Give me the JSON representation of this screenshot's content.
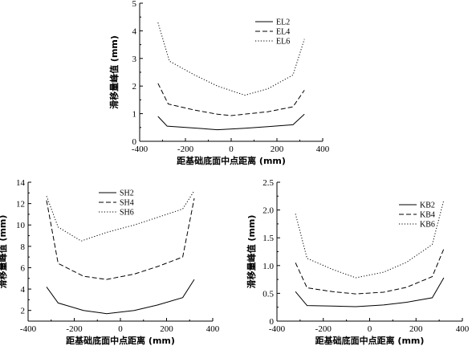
{
  "chart_data": [
    {
      "type": "line",
      "id": "top",
      "title": "",
      "xlabel": "距基础底面中点距离 (mm)",
      "ylabel": "滑移量峰值 (mm)",
      "xlim": [
        -400,
        400
      ],
      "ylim": [
        0,
        5
      ],
      "xticks": [
        -400,
        -200,
        0,
        200,
        400
      ],
      "yticks": [
        0,
        1,
        2,
        3,
        4,
        5
      ],
      "xtick_labels": [
        "-400",
        "-200",
        "0",
        "200",
        "400"
      ],
      "ytick_labels": [
        "0",
        "1",
        "2",
        "3",
        "4",
        "5"
      ],
      "legend": "top-right",
      "grid": false,
      "series": [
        {
          "name": "EL2",
          "style": "solid",
          "x": [
            -320,
            -280,
            -160,
            -60,
            60,
            160,
            270,
            320
          ],
          "y": [
            0.9,
            0.55,
            0.48,
            0.42,
            0.47,
            0.53,
            0.6,
            0.98
          ]
        },
        {
          "name": "EL4",
          "style": "dashed",
          "x": [
            -320,
            -275,
            -160,
            -60,
            0,
            160,
            270,
            320
          ],
          "y": [
            2.1,
            1.35,
            1.13,
            0.98,
            0.93,
            1.07,
            1.25,
            1.85
          ]
        },
        {
          "name": "EL6",
          "style": "dotted",
          "x": [
            -320,
            -270,
            -160,
            -60,
            60,
            160,
            270,
            320
          ],
          "y": [
            4.3,
            2.9,
            2.4,
            2.0,
            1.67,
            1.9,
            2.4,
            3.7
          ]
        }
      ]
    },
    {
      "type": "line",
      "id": "bottom-left",
      "title": "",
      "xlabel": "距基础底面中点距离 (mm)",
      "ylabel": "滑移量峰值 (mm)",
      "xlim": [
        -400,
        400
      ],
      "ylim": [
        1,
        14
      ],
      "xticks": [
        -400,
        -200,
        0,
        200,
        400
      ],
      "yticks": [
        2,
        4,
        6,
        8,
        10,
        12,
        14
      ],
      "xtick_labels": [
        "-400",
        "-200",
        "0",
        "200",
        "400"
      ],
      "ytick_labels": [
        "2",
        "4",
        "6",
        "8",
        "10",
        "12",
        "14"
      ],
      "legend": "top-left",
      "grid": false,
      "series": [
        {
          "name": "SH2",
          "style": "solid",
          "x": [
            -320,
            -270,
            -160,
            -60,
            60,
            160,
            270,
            320
          ],
          "y": [
            4.2,
            2.7,
            2.0,
            1.7,
            2.0,
            2.5,
            3.2,
            4.9
          ]
        },
        {
          "name": "SH4",
          "style": "dashed",
          "x": [
            -320,
            -270,
            -160,
            -60,
            60,
            160,
            270,
            320
          ],
          "y": [
            12.3,
            6.4,
            5.2,
            4.9,
            5.4,
            6.1,
            7.0,
            12.5
          ]
        },
        {
          "name": "SH6",
          "style": "dotted",
          "x": [
            -320,
            -270,
            -170,
            -60,
            60,
            160,
            270,
            320
          ],
          "y": [
            12.7,
            9.8,
            8.5,
            9.3,
            10.0,
            10.7,
            11.5,
            13.2
          ]
        }
      ]
    },
    {
      "type": "line",
      "id": "bottom-right",
      "title": "",
      "xlabel": "距基础底面中点距离 (mm)",
      "ylabel": "滑移量峰值 (mm)",
      "xlim": [
        -400,
        400
      ],
      "ylim": [
        0,
        2.5
      ],
      "xticks": [
        -400,
        -200,
        0,
        200,
        400
      ],
      "yticks": [
        0,
        0.5,
        1.0,
        1.5,
        2.0,
        2.5
      ],
      "xtick_labels": [
        "-400",
        "-200",
        "0",
        "200",
        "400"
      ],
      "ytick_labels": [
        "0",
        "0.5",
        "1.0",
        "1.5",
        "2.0",
        "2.5"
      ],
      "legend": "top-right",
      "grid": false,
      "series": [
        {
          "name": "KB2",
          "style": "solid",
          "x": [
            -320,
            -270,
            -160,
            -60,
            60,
            160,
            270,
            320
          ],
          "y": [
            0.53,
            0.28,
            0.27,
            0.26,
            0.29,
            0.34,
            0.42,
            0.78
          ]
        },
        {
          "name": "KB4",
          "style": "dashed",
          "x": [
            -320,
            -270,
            -160,
            -60,
            60,
            160,
            270,
            320
          ],
          "y": [
            1.05,
            0.6,
            0.53,
            0.49,
            0.52,
            0.61,
            0.8,
            1.3
          ]
        },
        {
          "name": "KB6",
          "style": "dotted",
          "x": [
            -320,
            -270,
            -160,
            -60,
            60,
            160,
            270,
            320
          ],
          "y": [
            1.93,
            1.13,
            0.93,
            0.78,
            0.88,
            1.06,
            1.38,
            2.18
          ]
        }
      ]
    }
  ]
}
